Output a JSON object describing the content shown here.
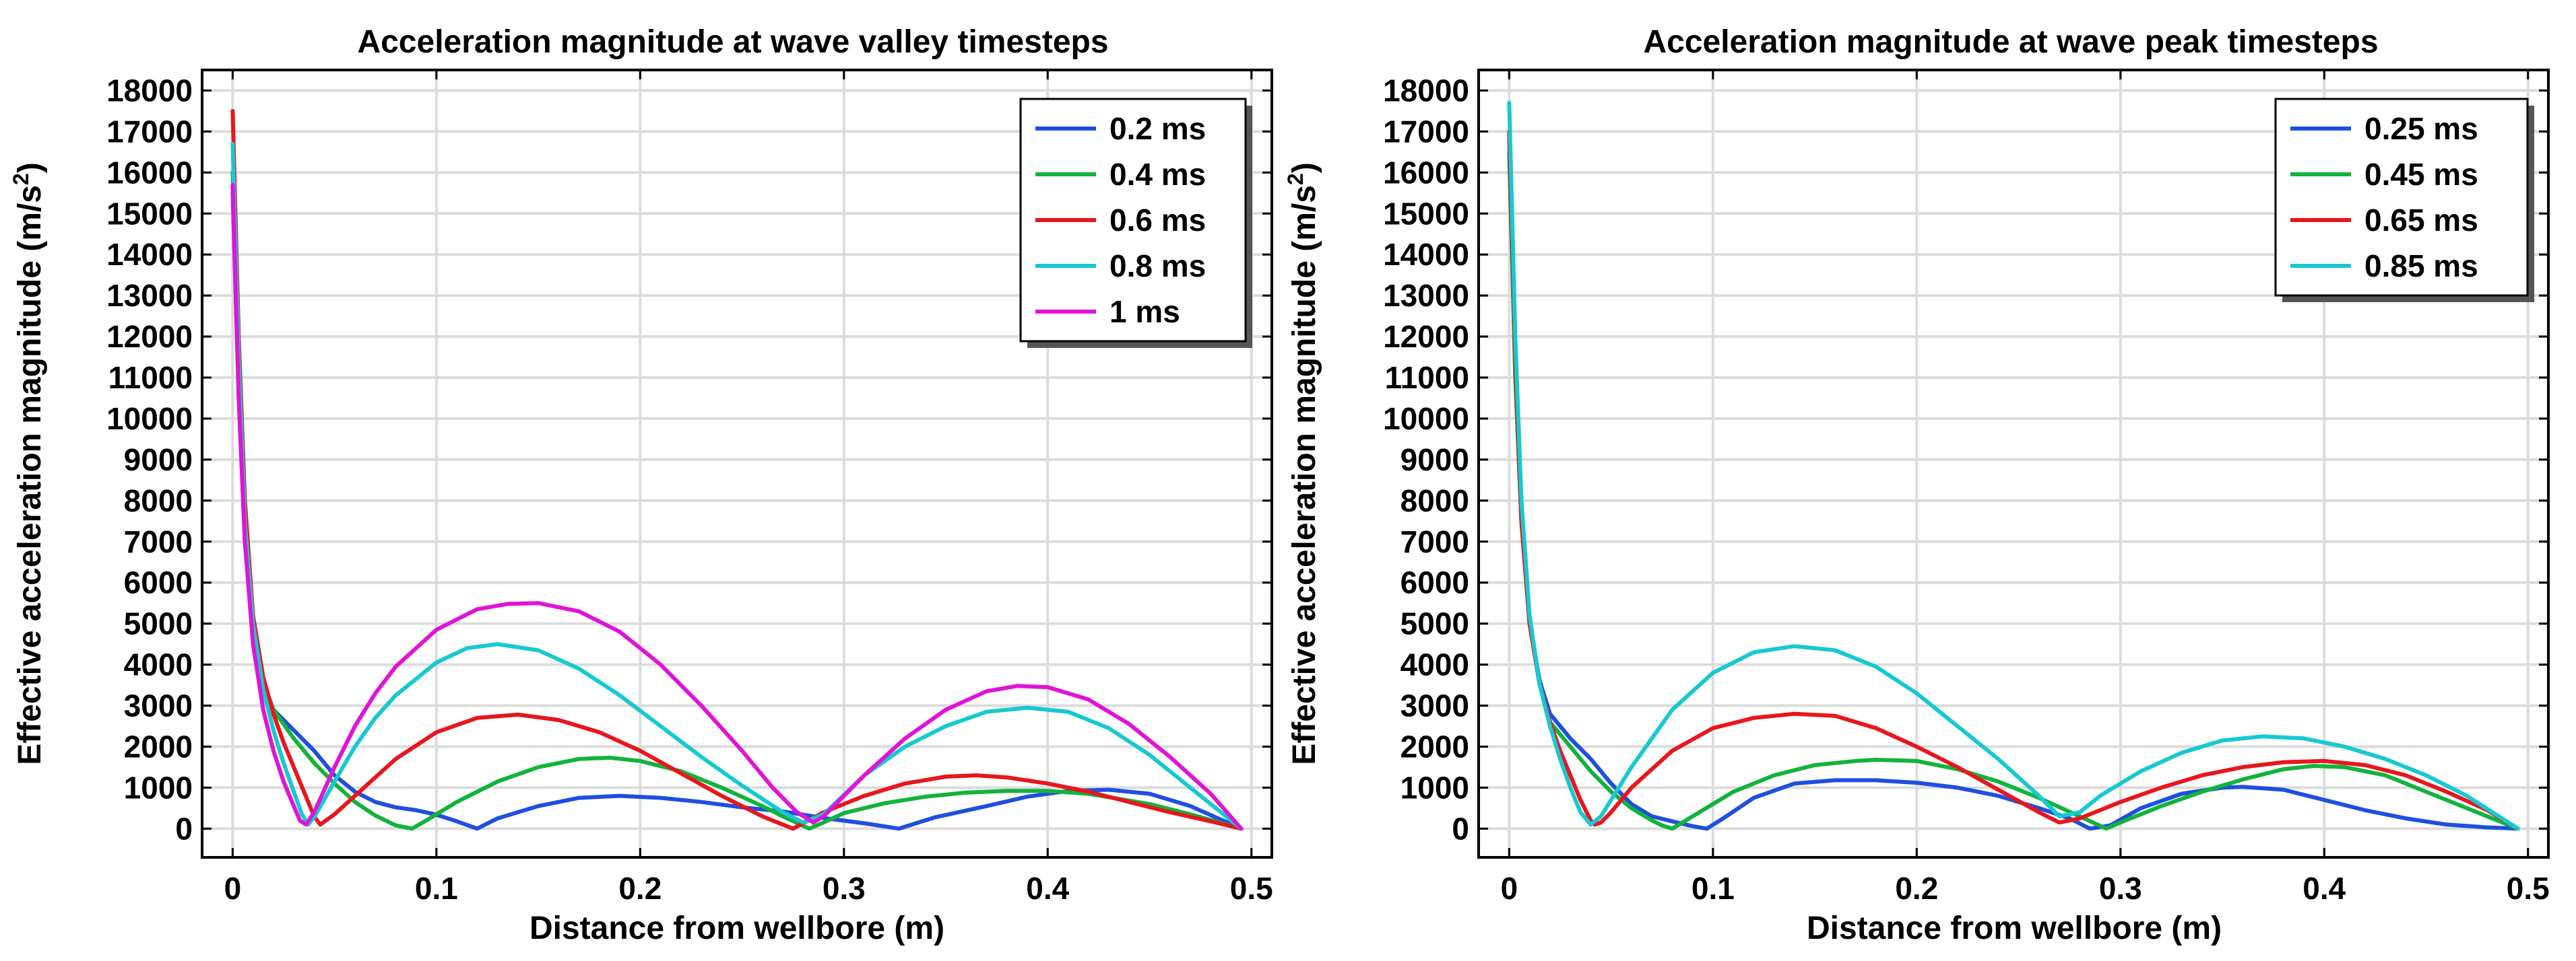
{
  "chart_data": [
    {
      "type": "line",
      "title": "Acceleration magnitude at wave valley timesteps",
      "xlabel": "Distance from wellbore (m)",
      "ylabel_main": "Effective acceleration magnitude (m/s",
      "ylabel_sup": "2",
      "ylabel_end": ")",
      "xlim": [
        -0.015,
        0.51
      ],
      "ylim": [
        -700,
        18500
      ],
      "xticks": [
        0,
        0.1,
        0.2,
        0.3,
        0.4,
        0.5
      ],
      "xtick_labels": [
        "0",
        "0.1",
        "0.2",
        "0.3",
        "0.4",
        "0.5"
      ],
      "yticks": [
        0,
        1000,
        2000,
        3000,
        4000,
        5000,
        6000,
        7000,
        8000,
        9000,
        10000,
        11000,
        12000,
        13000,
        14000,
        15000,
        16000,
        17000,
        18000
      ],
      "ytick_labels": [
        "0",
        "1000",
        "2000",
        "3000",
        "4000",
        "5000",
        "6000",
        "7000",
        "8000",
        "9000",
        "10000",
        "11000",
        "12000",
        "13000",
        "14000",
        "15000",
        "16000",
        "17000",
        "18000"
      ],
      "grid": true,
      "legend_position": "top-right",
      "series": [
        {
          "name": "0.2 ms",
          "color": "#1f4fe0",
          "x": [
            0,
            0.003,
            0.006,
            0.01,
            0.015,
            0.02,
            0.03,
            0.04,
            0.05,
            0.06,
            0.07,
            0.08,
            0.09,
            0.1,
            0.11,
            0.12,
            0.13,
            0.15,
            0.17,
            0.19,
            0.21,
            0.23,
            0.25,
            0.27,
            0.29,
            0.31,
            0.327,
            0.345,
            0.37,
            0.39,
            0.41,
            0.43,
            0.45,
            0.47,
            0.495
          ],
          "y": [
            15500,
            10500,
            7000,
            4700,
            3500,
            2900,
            2400,
            1900,
            1300,
            900,
            650,
            520,
            450,
            340,
            180,
            0,
            250,
            550,
            750,
            800,
            750,
            650,
            520,
            420,
            260,
            130,
            0,
            280,
            550,
            780,
            920,
            950,
            850,
            550,
            0
          ]
        },
        {
          "name": "0.4 ms",
          "color": "#12b33c",
          "x": [
            0,
            0.003,
            0.006,
            0.01,
            0.015,
            0.02,
            0.03,
            0.04,
            0.05,
            0.06,
            0.07,
            0.08,
            0.088,
            0.095,
            0.11,
            0.13,
            0.15,
            0.17,
            0.185,
            0.2,
            0.22,
            0.24,
            0.26,
            0.27,
            0.283,
            0.29,
            0.3,
            0.32,
            0.34,
            0.36,
            0.38,
            0.4,
            0.42,
            0.45,
            0.47,
            0.495
          ],
          "y": [
            16000,
            11000,
            7500,
            5000,
            3600,
            2900,
            2200,
            1600,
            1100,
            650,
            320,
            80,
            0,
            200,
            650,
            1150,
            1500,
            1700,
            1730,
            1650,
            1400,
            1000,
            550,
            300,
            0,
            150,
            380,
            620,
            780,
            880,
            920,
            920,
            850,
            600,
            350,
            0
          ]
        },
        {
          "name": "0.6 ms",
          "color": "#e8161e",
          "x": [
            0,
            0.003,
            0.006,
            0.01,
            0.015,
            0.02,
            0.025,
            0.03,
            0.035,
            0.04,
            0.043,
            0.05,
            0.06,
            0.07,
            0.08,
            0.1,
            0.12,
            0.14,
            0.16,
            0.18,
            0.2,
            0.22,
            0.24,
            0.26,
            0.275,
            0.29,
            0.31,
            0.33,
            0.35,
            0.365,
            0.38,
            0.4,
            0.42,
            0.44,
            0.46,
            0.48,
            0.495
          ],
          "y": [
            17500,
            12000,
            8000,
            5200,
            3700,
            2800,
            2100,
            1500,
            900,
            300,
            100,
            350,
            800,
            1250,
            1700,
            2350,
            2700,
            2780,
            2650,
            2350,
            1900,
            1350,
            800,
            300,
            0,
            400,
            800,
            1100,
            1270,
            1300,
            1250,
            1100,
            900,
            650,
            400,
            180,
            0
          ]
        },
        {
          "name": "0.8 ms",
          "color": "#17c9d1",
          "x": [
            0,
            0.003,
            0.006,
            0.01,
            0.015,
            0.02,
            0.025,
            0.03,
            0.034,
            0.037,
            0.04,
            0.05,
            0.06,
            0.07,
            0.08,
            0.1,
            0.115,
            0.13,
            0.15,
            0.17,
            0.19,
            0.21,
            0.23,
            0.25,
            0.27,
            0.28,
            0.29,
            0.31,
            0.33,
            0.35,
            0.37,
            0.39,
            0.41,
            0.43,
            0.45,
            0.47,
            0.495
          ],
          "y": [
            16700,
            11500,
            7500,
            5000,
            3400,
            2400,
            1600,
            900,
            350,
            100,
            280,
            1150,
            2000,
            2700,
            3250,
            4050,
            4400,
            4500,
            4350,
            3900,
            3250,
            2500,
            1750,
            1050,
            400,
            150,
            350,
            1300,
            2000,
            2500,
            2850,
            2950,
            2850,
            2450,
            1800,
            1000,
            0
          ]
        },
        {
          "name": "1 ms",
          "color": "#e014d6",
          "x": [
            0,
            0.003,
            0.006,
            0.01,
            0.015,
            0.02,
            0.025,
            0.03,
            0.033,
            0.036,
            0.04,
            0.05,
            0.06,
            0.07,
            0.08,
            0.1,
            0.12,
            0.135,
            0.15,
            0.17,
            0.19,
            0.21,
            0.23,
            0.25,
            0.265,
            0.277,
            0.285,
            0.29,
            0.31,
            0.33,
            0.35,
            0.37,
            0.385,
            0.4,
            0.42,
            0.44,
            0.46,
            0.48,
            0.495
          ],
          "y": [
            15700,
            10500,
            7000,
            4500,
            2900,
            1900,
            1150,
            550,
            200,
            100,
            400,
            1500,
            2500,
            3300,
            3950,
            4850,
            5350,
            5480,
            5500,
            5300,
            4800,
            4000,
            3000,
            1900,
            1000,
            400,
            150,
            300,
            1300,
            2200,
            2900,
            3350,
            3480,
            3450,
            3150,
            2550,
            1750,
            850,
            0
          ]
        }
      ]
    },
    {
      "type": "line",
      "title": "Acceleration magnitude at wave peak timesteps",
      "xlabel": "Distance from wellbore (m)",
      "ylabel_main": "Effective acceleration magnitude (m/s",
      "ylabel_sup": "2",
      "ylabel_end": ")",
      "xlim": [
        -0.015,
        0.51
      ],
      "ylim": [
        -700,
        18500
      ],
      "xticks": [
        0,
        0.1,
        0.2,
        0.3,
        0.4,
        0.5
      ],
      "xtick_labels": [
        "0",
        "0.1",
        "0.2",
        "0.3",
        "0.4",
        "0.5"
      ],
      "yticks": [
        0,
        1000,
        2000,
        3000,
        4000,
        5000,
        6000,
        7000,
        8000,
        9000,
        10000,
        11000,
        12000,
        13000,
        14000,
        15000,
        16000,
        17000,
        18000
      ],
      "ytick_labels": [
        "0",
        "1000",
        "2000",
        "3000",
        "4000",
        "5000",
        "6000",
        "7000",
        "8000",
        "9000",
        "10000",
        "11000",
        "12000",
        "13000",
        "14000",
        "15000",
        "16000",
        "17000",
        "18000"
      ],
      "grid": true,
      "legend_position": "top-right",
      "series": [
        {
          "name": "0.25 ms",
          "color": "#1f4fe0",
          "x": [
            0,
            0.003,
            0.006,
            0.01,
            0.015,
            0.02,
            0.03,
            0.04,
            0.05,
            0.06,
            0.07,
            0.08,
            0.09,
            0.097,
            0.105,
            0.12,
            0.14,
            0.16,
            0.18,
            0.2,
            0.22,
            0.24,
            0.26,
            0.275,
            0.285,
            0.295,
            0.31,
            0.33,
            0.35,
            0.36,
            0.38,
            0.4,
            0.42,
            0.44,
            0.46,
            0.48,
            0.495
          ],
          "y": [
            16500,
            11000,
            7500,
            5000,
            3600,
            2800,
            2200,
            1700,
            1100,
            600,
            300,
            180,
            60,
            0,
            250,
            750,
            1100,
            1180,
            1180,
            1120,
            1000,
            800,
            500,
            250,
            0,
            80,
            500,
            850,
            1000,
            1020,
            950,
            700,
            450,
            250,
            100,
            30,
            0
          ]
        },
        {
          "name": "0.45 ms",
          "color": "#12b33c",
          "x": [
            0,
            0.003,
            0.006,
            0.01,
            0.015,
            0.02,
            0.03,
            0.04,
            0.05,
            0.06,
            0.07,
            0.075,
            0.08,
            0.09,
            0.11,
            0.13,
            0.15,
            0.17,
            0.18,
            0.2,
            0.22,
            0.24,
            0.26,
            0.28,
            0.293,
            0.3,
            0.32,
            0.34,
            0.36,
            0.38,
            0.395,
            0.41,
            0.43,
            0.45,
            0.47,
            0.495
          ],
          "y": [
            16800,
            11000,
            7500,
            5000,
            3500,
            2600,
            2000,
            1400,
            900,
            500,
            200,
            80,
            0,
            300,
            900,
            1300,
            1550,
            1650,
            1680,
            1650,
            1450,
            1150,
            750,
            300,
            0,
            150,
            550,
            900,
            1200,
            1450,
            1530,
            1500,
            1300,
            900,
            500,
            0
          ]
        },
        {
          "name": "0.65 ms",
          "color": "#e8161e",
          "x": [
            0,
            0.003,
            0.006,
            0.01,
            0.015,
            0.02,
            0.025,
            0.03,
            0.035,
            0.04,
            0.042,
            0.045,
            0.05,
            0.06,
            0.08,
            0.1,
            0.12,
            0.14,
            0.16,
            0.18,
            0.2,
            0.22,
            0.24,
            0.26,
            0.27,
            0.28,
            0.3,
            0.32,
            0.34,
            0.36,
            0.38,
            0.4,
            0.42,
            0.44,
            0.46,
            0.48,
            0.495
          ],
          "y": [
            17000,
            11500,
            7500,
            5000,
            3500,
            2600,
            1900,
            1300,
            700,
            200,
            100,
            150,
            400,
            1000,
            1900,
            2450,
            2700,
            2800,
            2750,
            2450,
            2000,
            1500,
            950,
            400,
            150,
            250,
            650,
            1000,
            1300,
            1500,
            1620,
            1650,
            1550,
            1300,
            900,
            450,
            0
          ]
        },
        {
          "name": "0.85 ms",
          "color": "#17c9d1",
          "x": [
            0,
            0.003,
            0.006,
            0.01,
            0.015,
            0.02,
            0.025,
            0.03,
            0.035,
            0.04,
            0.045,
            0.05,
            0.06,
            0.08,
            0.1,
            0.12,
            0.14,
            0.16,
            0.18,
            0.2,
            0.22,
            0.24,
            0.26,
            0.27,
            0.28,
            0.29,
            0.31,
            0.33,
            0.35,
            0.37,
            0.39,
            0.41,
            0.43,
            0.45,
            0.47,
            0.495
          ],
          "y": [
            17700,
            12000,
            8000,
            5200,
            3500,
            2500,
            1700,
            1000,
            400,
            100,
            300,
            700,
            1500,
            2900,
            3800,
            4300,
            4450,
            4350,
            3950,
            3300,
            2500,
            1700,
            800,
            300,
            400,
            800,
            1400,
            1850,
            2150,
            2250,
            2200,
            2000,
            1700,
            1300,
            800,
            0
          ]
        }
      ]
    }
  ]
}
